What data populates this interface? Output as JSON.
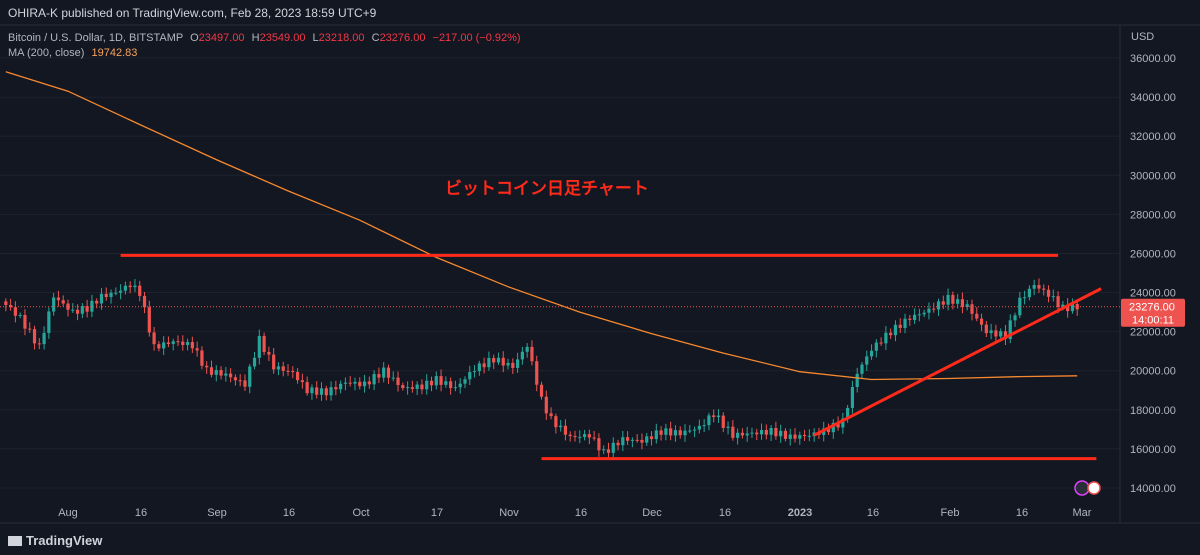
{
  "header": {
    "published_by": "OHIRA-K published on TradingView.com, Feb 28, 2023 18:59 UTC+9"
  },
  "legend": {
    "symbol": "Bitcoin / U.S. Dollar, 1D, BITSTAMP",
    "o_label": "O",
    "o_val": "23497.00",
    "h_label": "H",
    "h_val": "23549.00",
    "l_label": "L",
    "l_val": "23218.00",
    "c_label": "C",
    "c_val": "23276.00",
    "chg": "−217.00 (−0.92%)",
    "ma_label": "MA (200, close)",
    "ma_val": "19742.83"
  },
  "annotation": "ビットコイン日足チャート",
  "price_label": {
    "price": "23276.00",
    "countdown": "14:00:11"
  },
  "footer": {
    "brand": "TradingView"
  },
  "colors": {
    "up": "#26a69a",
    "down": "#ef5350",
    "ma": "#f7882f",
    "line": "#ff2a1a",
    "bg": "#131722"
  },
  "chart_data": {
    "type": "candlestick",
    "currency": "USD",
    "y_ticks": [
      14000,
      16000,
      18000,
      20000,
      22000,
      24000,
      26000,
      28000,
      30000,
      32000,
      34000,
      36000
    ],
    "ylim": [
      13400,
      37400
    ],
    "x_ticks": [
      "Aug",
      "16",
      "Sep",
      "16",
      "Oct",
      "17",
      "Nov",
      "16",
      "Dec",
      "16",
      "2023",
      "16",
      "Feb",
      "16",
      "Mar"
    ],
    "x_range": [
      "2022-07-19",
      "2023-03-05"
    ],
    "current_price": 23276,
    "ma_200": [
      {
        "date": "2022-07-19",
        "v": 35300
      },
      {
        "date": "2022-08-01",
        "v": 34300
      },
      {
        "date": "2022-08-16",
        "v": 32600
      },
      {
        "date": "2022-09-01",
        "v": 30800
      },
      {
        "date": "2022-09-16",
        "v": 29200
      },
      {
        "date": "2022-10-01",
        "v": 27700
      },
      {
        "date": "2022-10-17",
        "v": 25800
      },
      {
        "date": "2022-11-01",
        "v": 24300
      },
      {
        "date": "2022-11-16",
        "v": 23000
      },
      {
        "date": "2022-12-01",
        "v": 21900
      },
      {
        "date": "2022-12-16",
        "v": 20900
      },
      {
        "date": "2023-01-01",
        "v": 19950
      },
      {
        "date": "2023-01-16",
        "v": 19550
      },
      {
        "date": "2023-02-01",
        "v": 19600
      },
      {
        "date": "2023-02-16",
        "v": 19700
      },
      {
        "date": "2023-02-28",
        "v": 19743
      }
    ],
    "candles": [
      {
        "date": "2022-07-19",
        "c": 23400
      },
      {
        "date": "2022-07-22",
        "c": 22700
      },
      {
        "date": "2022-07-26",
        "c": 21200
      },
      {
        "date": "2022-07-29",
        "c": 23800
      },
      {
        "date": "2022-08-02",
        "c": 23000
      },
      {
        "date": "2022-08-05",
        "c": 23200
      },
      {
        "date": "2022-08-08",
        "c": 23800
      },
      {
        "date": "2022-08-11",
        "c": 24000
      },
      {
        "date": "2022-08-14",
        "c": 24400
      },
      {
        "date": "2022-08-16",
        "c": 24000
      },
      {
        "date": "2022-08-19",
        "c": 21200
      },
      {
        "date": "2022-08-23",
        "c": 21500
      },
      {
        "date": "2022-08-27",
        "c": 21300
      },
      {
        "date": "2022-08-30",
        "c": 20000
      },
      {
        "date": "2022-09-03",
        "c": 19800
      },
      {
        "date": "2022-09-07",
        "c": 19300
      },
      {
        "date": "2022-09-10",
        "c": 21600
      },
      {
        "date": "2022-09-13",
        "c": 20200
      },
      {
        "date": "2022-09-17",
        "c": 19900
      },
      {
        "date": "2022-09-20",
        "c": 19000
      },
      {
        "date": "2022-09-24",
        "c": 18900
      },
      {
        "date": "2022-09-28",
        "c": 19400
      },
      {
        "date": "2022-10-02",
        "c": 19300
      },
      {
        "date": "2022-10-06",
        "c": 20000
      },
      {
        "date": "2022-10-10",
        "c": 19100
      },
      {
        "date": "2022-10-14",
        "c": 19200
      },
      {
        "date": "2022-10-17",
        "c": 19550
      },
      {
        "date": "2022-10-21",
        "c": 19100
      },
      {
        "date": "2022-10-25",
        "c": 20100
      },
      {
        "date": "2022-10-29",
        "c": 20600
      },
      {
        "date": "2022-11-02",
        "c": 20200
      },
      {
        "date": "2022-11-05",
        "c": 21300
      },
      {
        "date": "2022-11-08",
        "c": 18500
      },
      {
        "date": "2022-11-10",
        "c": 17500
      },
      {
        "date": "2022-11-14",
        "c": 16600
      },
      {
        "date": "2022-11-18",
        "c": 16700
      },
      {
        "date": "2022-11-21",
        "c": 15800
      },
      {
        "date": "2022-11-25",
        "c": 16500
      },
      {
        "date": "2022-11-29",
        "c": 16400
      },
      {
        "date": "2022-12-03",
        "c": 16900
      },
      {
        "date": "2022-12-07",
        "c": 16800
      },
      {
        "date": "2022-12-11",
        "c": 17100
      },
      {
        "date": "2022-12-14",
        "c": 17800
      },
      {
        "date": "2022-12-18",
        "c": 16700
      },
      {
        "date": "2022-12-22",
        "c": 16800
      },
      {
        "date": "2022-12-26",
        "c": 16900
      },
      {
        "date": "2022-12-30",
        "c": 16600
      },
      {
        "date": "2023-01-03",
        "c": 16700
      },
      {
        "date": "2023-01-06",
        "c": 16900
      },
      {
        "date": "2023-01-10",
        "c": 17400
      },
      {
        "date": "2023-01-13",
        "c": 19900
      },
      {
        "date": "2023-01-16",
        "c": 21100
      },
      {
        "date": "2023-01-20",
        "c": 22000
      },
      {
        "date": "2023-01-24",
        "c": 22700
      },
      {
        "date": "2023-01-28",
        "c": 23100
      },
      {
        "date": "2023-02-01",
        "c": 23700
      },
      {
        "date": "2023-02-05",
        "c": 23300
      },
      {
        "date": "2023-02-09",
        "c": 22000
      },
      {
        "date": "2023-02-13",
        "c": 21800
      },
      {
        "date": "2023-02-16",
        "c": 23600
      },
      {
        "date": "2023-02-19",
        "c": 24400
      },
      {
        "date": "2023-02-22",
        "c": 23900
      },
      {
        "date": "2023-02-25",
        "c": 23200
      },
      {
        "date": "2023-02-28",
        "c": 23276
      }
    ],
    "horizontal_lines": [
      {
        "price": 25900,
        "from": "2022-08-12",
        "to": "2023-02-24"
      },
      {
        "price": 15500,
        "from": "2022-11-08",
        "to": "2023-03-04"
      }
    ],
    "trend_line": {
      "from": {
        "date": "2023-01-04",
        "price": 16700
      },
      "to": {
        "date": "2023-03-05",
        "price": 24200
      }
    }
  }
}
